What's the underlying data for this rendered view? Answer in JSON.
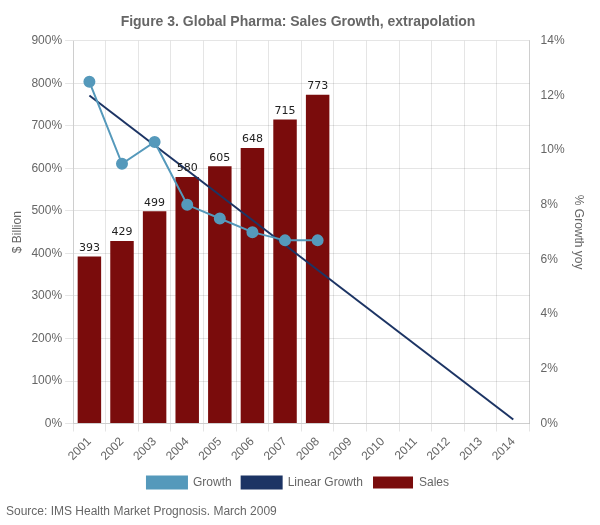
{
  "chart_data": {
    "type": "bar",
    "title": "Figure 3. Global Pharma: Sales Growth, extrapolation",
    "annotation": "Source: IMS Health Market Prognosis. March 2009",
    "ylabel": "$ Billion",
    "y2label": "% Growth yoy",
    "categories": [
      "2001",
      "2002",
      "2003",
      "2004",
      "2005",
      "2006",
      "2007",
      "2008",
      "2009",
      "2010",
      "2011",
      "2012",
      "2013",
      "2014"
    ],
    "series": [
      {
        "name": "Sales",
        "type": "bar",
        "color": "#7A0C0C",
        "data_labels": true,
        "values": [
          393,
          429,
          499,
          580,
          605,
          648,
          715,
          773,
          null,
          null,
          null,
          null,
          null,
          null
        ]
      },
      {
        "name": "Growth",
        "type": "line",
        "axis": "y2",
        "color": "#5599BB",
        "marker": "circle",
        "values": [
          12.5,
          9.5,
          10.3,
          8.0,
          7.5,
          7.0,
          6.7,
          6.7,
          null,
          null,
          null,
          null,
          null,
          null
        ]
      },
      {
        "name": "Linear Growth",
        "type": "line",
        "axis": "y2",
        "color": "#1C3464",
        "values": [
          12.0,
          null,
          null,
          null,
          null,
          null,
          null,
          null,
          null,
          null,
          null,
          null,
          null,
          0.15
        ]
      }
    ],
    "ylim": [
      0,
      900
    ],
    "yticks": [
      {
        "value": 0,
        "label": "0%"
      },
      {
        "value": 100,
        "label": "100%"
      },
      {
        "value": 200,
        "label": "200%"
      },
      {
        "value": 300,
        "label": "300%"
      },
      {
        "value": 400,
        "label": "400%"
      },
      {
        "value": 500,
        "label": "500%"
      },
      {
        "value": 600,
        "label": "600%"
      },
      {
        "value": 700,
        "label": "700%"
      },
      {
        "value": 800,
        "label": "800%"
      },
      {
        "value": 900,
        "label": "900%"
      }
    ],
    "y2lim": [
      0,
      14
    ],
    "y2ticks": [
      {
        "value": 0,
        "label": "0%"
      },
      {
        "value": 2,
        "label": "2%"
      },
      {
        "value": 4,
        "label": "4%"
      },
      {
        "value": 6,
        "label": "6%"
      },
      {
        "value": 8,
        "label": "8%"
      },
      {
        "value": 10,
        "label": "10%"
      },
      {
        "value": 12,
        "label": "12%"
      },
      {
        "value": 14,
        "label": "14%"
      }
    ],
    "grid": true,
    "legend": "bottom"
  }
}
